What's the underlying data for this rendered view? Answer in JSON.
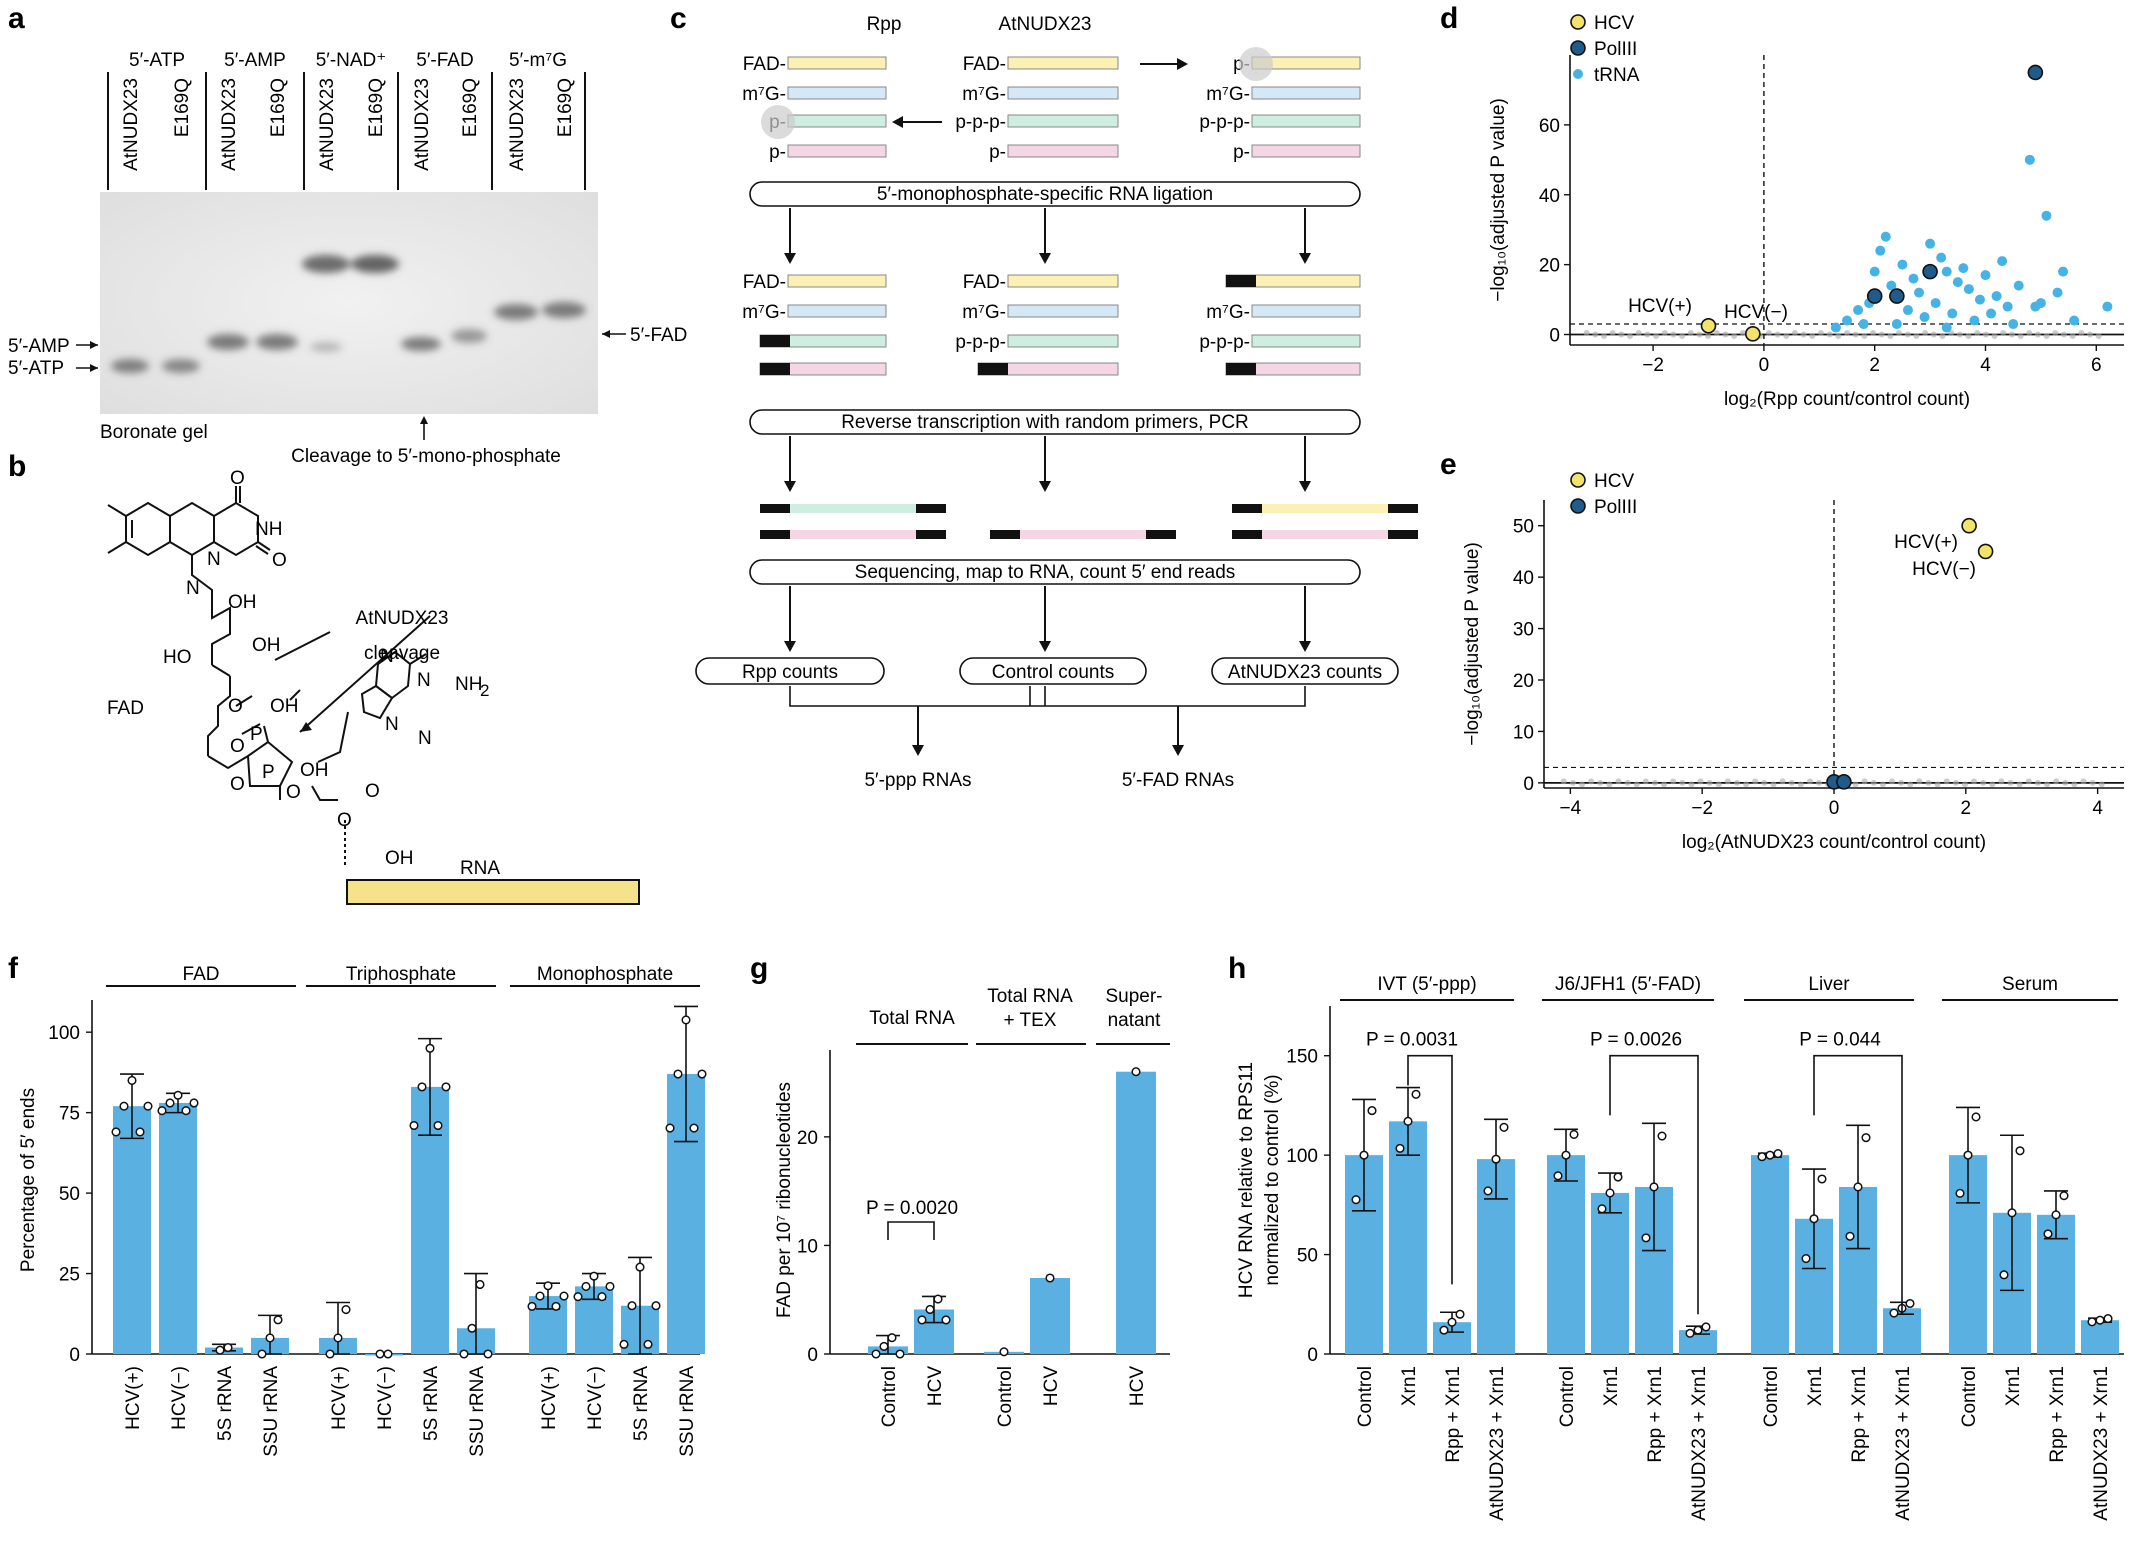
{
  "panels": {
    "a": "a",
    "b": "b",
    "c": "c",
    "d": "d",
    "e": "e",
    "f": "f",
    "g": "g",
    "h": "h"
  },
  "panel_a": {
    "groups": [
      "5′-ATP",
      "5′-AMP",
      "5′-NAD⁺",
      "5′-FAD",
      "5′-m⁷G"
    ],
    "lanes": [
      "AtNUDX23",
      "E169Q",
      "AtNUDX23",
      "E169Q",
      "AtNUDX23",
      "E169Q",
      "AtNUDX23",
      "E169Q",
      "AtNUDX23",
      "E169Q"
    ],
    "left_labels": [
      "5′-AMP",
      "5′-ATP"
    ],
    "right_label": "5′-FAD",
    "gel_label": "Boronate gel",
    "bottom_label": "Cleavage to 5′-mono-phosphate"
  },
  "panel_b": {
    "fad": "FAD",
    "enzyme": "AtNUDX23",
    "cleavage": "cleavage",
    "rna": "RNA",
    "atoms": {
      "O": "O",
      "NH": "NH",
      "N": "N",
      "OH": "OH",
      "HO": "HO",
      "P": "P",
      "NH2": "NH",
      "sub2": "2"
    }
  },
  "panel_c": {
    "col1": "Rpp",
    "col2": "AtNUDX23",
    "ends_left": [
      "FAD-",
      "m⁷G-",
      "p-",
      "p-"
    ],
    "ends_mid": [
      "FAD-",
      "m⁷G-",
      "p-p-p-",
      "p-"
    ],
    "ends_right": [
      "p-",
      "m⁷G-",
      "p-p-p-",
      "p-"
    ],
    "step1": "5′-monophosphate-specific RNA ligation",
    "lig_left": [
      "FAD-",
      "m⁷G-"
    ],
    "lig_mid": [
      "FAD-",
      "m⁷G-",
      "p-p-p-"
    ],
    "lig_right": [
      "m⁷G-",
      "p-p-p-"
    ],
    "step2": "Reverse transcription with random primers, PCR",
    "step3": "Sequencing, map to RNA, count 5′ end reads",
    "counts": [
      "Rpp counts",
      "Control counts",
      "AtNUDX23 counts"
    ],
    "outputs": [
      "5′-ppp RNAs",
      "5′-FAD RNAs"
    ]
  },
  "panel_d": {
    "legend": [
      "HCV",
      "PolIII",
      "tRNA"
    ],
    "ylabel": "−log₁₀(adjusted P value)",
    "xlabel": "log₂(Rpp count/control count)",
    "xticks": [
      "−2",
      "0",
      "2",
      "4",
      "6"
    ],
    "yticks": [
      "0",
      "20",
      "40",
      "60"
    ],
    "ann": [
      "HCV(+)",
      "HCV(−)"
    ]
  },
  "panel_e": {
    "legend": [
      "HCV",
      "PolIII"
    ],
    "ylabel": "−log₁₀(adjusted P value)",
    "xlabel": "log₂(AtNUDX23 count/control count)",
    "xticks": [
      "−4",
      "−2",
      "0",
      "2",
      "4"
    ],
    "yticks": [
      "0",
      "10",
      "20",
      "30",
      "40",
      "50"
    ],
    "ann": [
      "HCV(+)",
      "HCV(−)"
    ]
  },
  "panel_g_text": {
    "groups": [
      "Total RNA",
      "Total RNA",
      "+ TEX",
      "Super-",
      "natant"
    ],
    "ylabel": "FAD per 10⁷ ribonucleotides",
    "p": "P = 0.0020"
  },
  "panel_h_text": {
    "groups": [
      "IVT (5′-ppp)",
      "J6/JFH1 (5′-FAD)",
      "Liver",
      "Serum"
    ],
    "ylabel1": "HCV RNA relative to RPS11",
    "ylabel2": "normalized to control (%)",
    "p": [
      "P = 0.0031",
      "P = 0.0026",
      "P = 0.044"
    ]
  },
  "chart_data": [
    {
      "type": "bar",
      "panel": "f",
      "groups": [
        "FAD",
        "Triphosphate",
        "Monophosphate"
      ],
      "categories": [
        "HCV(+)",
        "HCV(−)",
        "5S rRNA",
        "SSU rRNA",
        "HCV(+)",
        "HCV(−)",
        "5S rRNA",
        "SSU rRNA",
        "HCV(+)",
        "HCV(−)",
        "5S rRNA",
        "SSU rRNA"
      ],
      "values": [
        77,
        78,
        2,
        5,
        5,
        0,
        83,
        8,
        18,
        21,
        15,
        87
      ],
      "err": [
        10,
        3,
        1,
        7,
        11,
        0,
        15,
        17,
        4,
        4,
        15,
        21
      ],
      "ylabel": "Percentage of 5′ ends",
      "ylim": [
        0,
        110
      ],
      "yticks": [
        0,
        25,
        50,
        75,
        100
      ]
    },
    {
      "type": "bar",
      "panel": "g",
      "categories": [
        "Control",
        "HCV",
        "Control",
        "HCV",
        "HCV"
      ],
      "values": [
        0.7,
        4.1,
        0.2,
        7.0,
        26.0
      ],
      "err": [
        1.0,
        1.2,
        0,
        0,
        0
      ],
      "ylabel": "FAD per 10⁷ ribonucleotides",
      "ylim": [
        0,
        28
      ],
      "yticks": [
        0,
        10,
        20
      ]
    },
    {
      "type": "bar",
      "panel": "h",
      "groups": [
        "IVT (5′-ppp)",
        "J6/JFH1 (5′-FAD)",
        "Liver",
        "Serum"
      ],
      "categories": [
        "Control",
        "Xrn1",
        "Rpp + Xrn1",
        "AtNUDX23 + Xrn1",
        "Control",
        "Xrn1",
        "Rpp + Xrn1",
        "AtNUDX23 + Xrn1",
        "Control",
        "Xrn1",
        "Rpp + Xrn1",
        "AtNUDX23 + Xrn1",
        "Control",
        "Xrn1",
        "Rpp + Xrn1",
        "AtNUDX23 + Xrn1"
      ],
      "values": [
        100,
        117,
        16,
        98,
        100,
        81,
        84,
        12,
        100,
        68,
        84,
        23,
        100,
        71,
        70,
        17
      ],
      "err": [
        28,
        17,
        5,
        20,
        13,
        10,
        32,
        2,
        1,
        25,
        31,
        3,
        24,
        39,
        12,
        1
      ],
      "ylabel": "HCV RNA relative to RPS11 normalized to control (%)",
      "ylim": [
        0,
        175
      ],
      "yticks": [
        0,
        50,
        100,
        150
      ]
    },
    {
      "type": "scatter",
      "panel": "d",
      "series": [
        {
          "name": "HCV",
          "points": [
            [
              -1.0,
              2.5
            ],
            [
              -0.2,
              0.2
            ]
          ]
        },
        {
          "name": "PolIII",
          "points": [
            [
              4.9,
              75
            ],
            [
              2.0,
              11
            ],
            [
              2.4,
              11
            ],
            [
              3.0,
              18
            ]
          ]
        },
        {
          "name": "tRNA",
          "points": [
            [
              1.3,
              2
            ],
            [
              1.5,
              4
            ],
            [
              1.7,
              7
            ],
            [
              1.9,
              9
            ],
            [
              2.0,
              18
            ],
            [
              2.1,
              24
            ],
            [
              2.2,
              28
            ],
            [
              2.3,
              14
            ],
            [
              2.5,
              20
            ],
            [
              2.6,
              7
            ],
            [
              2.7,
              16
            ],
            [
              2.8,
              12
            ],
            [
              3.0,
              26
            ],
            [
              3.1,
              9
            ],
            [
              3.2,
              22
            ],
            [
              3.3,
              18
            ],
            [
              3.4,
              6
            ],
            [
              3.5,
              15
            ],
            [
              3.6,
              19
            ],
            [
              3.7,
              13
            ],
            [
              3.8,
              4
            ],
            [
              3.9,
              10
            ],
            [
              4.0,
              17
            ],
            [
              4.1,
              6
            ],
            [
              4.2,
              11
            ],
            [
              4.3,
              21
            ],
            [
              4.4,
              8
            ],
            [
              4.5,
              3
            ],
            [
              4.6,
              14
            ],
            [
              4.8,
              50
            ],
            [
              4.9,
              8
            ],
            [
              5.0,
              9
            ],
            [
              5.1,
              34
            ],
            [
              5.3,
              12
            ],
            [
              5.4,
              18
            ],
            [
              5.6,
              4
            ],
            [
              6.2,
              8
            ],
            [
              2.4,
              3
            ],
            [
              2.9,
              5
            ],
            [
              3.3,
              2
            ],
            [
              1.8,
              3
            ]
          ]
        }
      ],
      "xlim": [
        -3.5,
        6.5
      ],
      "ylim": [
        -3,
        80
      ]
    },
    {
      "type": "scatter",
      "panel": "e",
      "series": [
        {
          "name": "HCV",
          "points": [
            [
              2.05,
              50
            ],
            [
              2.3,
              45
            ]
          ]
        },
        {
          "name": "PolIII",
          "points": [
            [
              0.0,
              0.2
            ],
            [
              0.15,
              0.2
            ]
          ]
        }
      ],
      "xlim": [
        -4.4,
        4.4
      ],
      "ylim": [
        -1,
        55
      ]
    }
  ]
}
